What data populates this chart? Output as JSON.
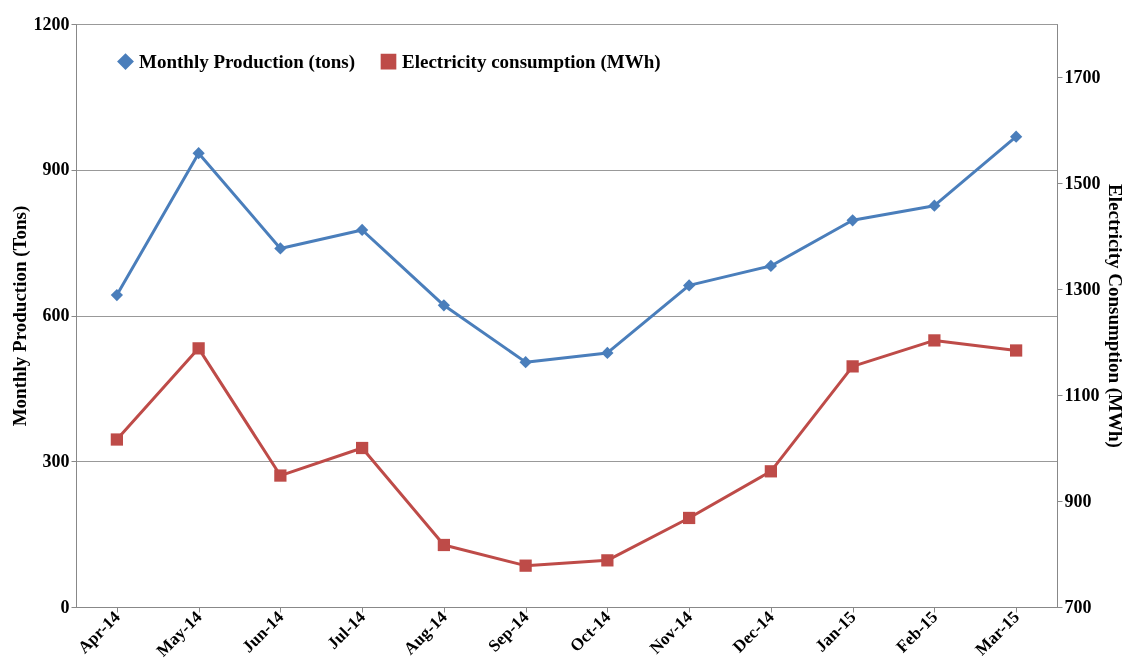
{
  "chart_data": {
    "type": "line",
    "ylabel": "Monthly Production (Tons)",
    "y2label": "Electricity Consumption (MWh)",
    "categories": [
      "Apr-14",
      "May-14",
      "Jun-14",
      "Jul-14",
      "Aug-14",
      "Sep-14",
      "Oct-14",
      "Nov-14",
      "Dec-14",
      "Jan-15",
      "Feb-15",
      "Mar-15"
    ],
    "series": [
      {
        "name": "Monthly Production (tons)",
        "color": "#4a7ebb",
        "marker": "diamond",
        "values": [
          642,
          934,
          738,
          776,
          621,
          504,
          523,
          662,
          702,
          796,
          826,
          968
        ]
      },
      {
        "name": "Electricity consumption (MWh)",
        "color": "#be4b48",
        "marker": "square",
        "axis": "y2",
        "values": [
          1016,
          1188,
          948,
          1000,
          817,
          778,
          788,
          868,
          956,
          1154,
          1203,
          1184
        ]
      }
    ],
    "ylim": [
      0,
      1200
    ],
    "yticks": [
      0,
      300,
      600,
      900,
      1200
    ],
    "y2lim": [
      700,
      1800
    ],
    "y2ticks": [
      700,
      900,
      1100,
      1300,
      1500,
      1700
    ],
    "grid": "y",
    "legend": "top"
  }
}
